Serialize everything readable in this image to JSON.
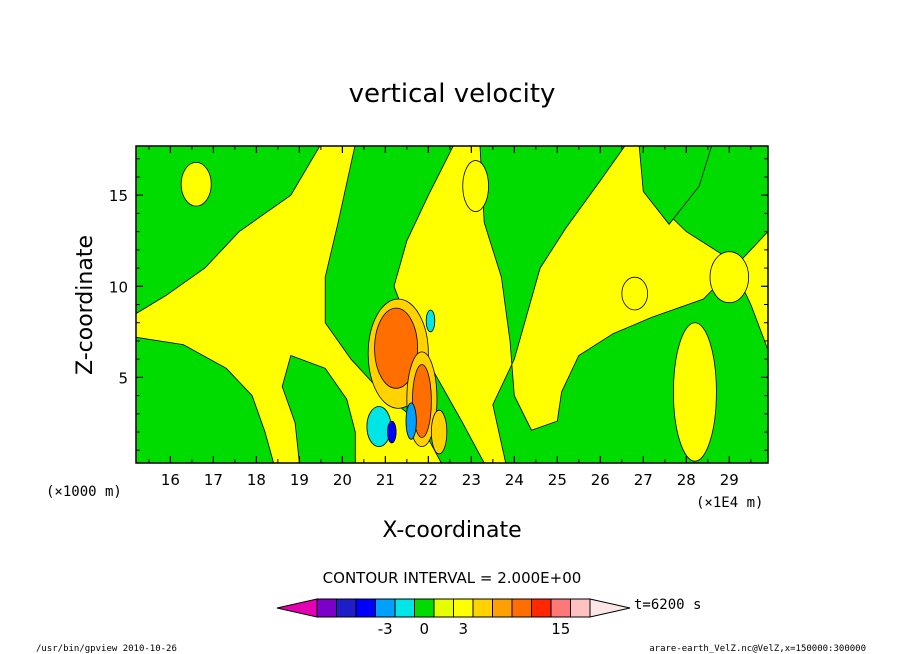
{
  "chart_data": {
    "type": "contour",
    "title": "vertical velocity",
    "xlabel": "X-coordinate",
    "ylabel": "Z-coordinate",
    "x_unit": "(×1E4 m)",
    "y_unit": "(×1000 m)",
    "xlim": [
      15.2,
      29.9
    ],
    "ylim": [
      0.3,
      17.7
    ],
    "x_ticks": [
      16,
      17,
      18,
      19,
      20,
      21,
      22,
      23,
      24,
      25,
      26,
      27,
      28,
      29
    ],
    "y_ticks": [
      5,
      10,
      15
    ],
    "contour_interval_text": "CONTOUR INTERVAL = 2.000E+00",
    "time_label": "t=6200 s",
    "colorbar": {
      "levels": [
        -11,
        -9,
        -7,
        -5,
        -3,
        -1,
        0,
        1,
        3,
        5,
        7,
        9,
        11,
        15
      ],
      "labels": [
        "-3",
        "0",
        "3",
        "15"
      ],
      "colors": [
        "#e600b4",
        "#7d00c8",
        "#1e1ec8",
        "#0000ff",
        "#00a0ff",
        "#00e6e6",
        "#00dc00",
        "#e6ff00",
        "#ffff00",
        "#ffd200",
        "#ffa000",
        "#ff6e00",
        "#ff2800",
        "#ff7878",
        "#ffc0c0",
        "#ffe6e6"
      ]
    },
    "regions": {
      "background_color": "#ffff00",
      "weak_downdraft_color": "#00dc00",
      "updraft_colors": [
        "#ffd200",
        "#ff6e00"
      ],
      "downdraft_colors": [
        "#00e6e6",
        "#00a0ff",
        "#0000ff"
      ]
    }
  },
  "footer": {
    "left": "/usr/bin/gpview  2010-10-26",
    "right": "arare-earth_VelZ.nc@VelZ,x=150000:300000"
  }
}
